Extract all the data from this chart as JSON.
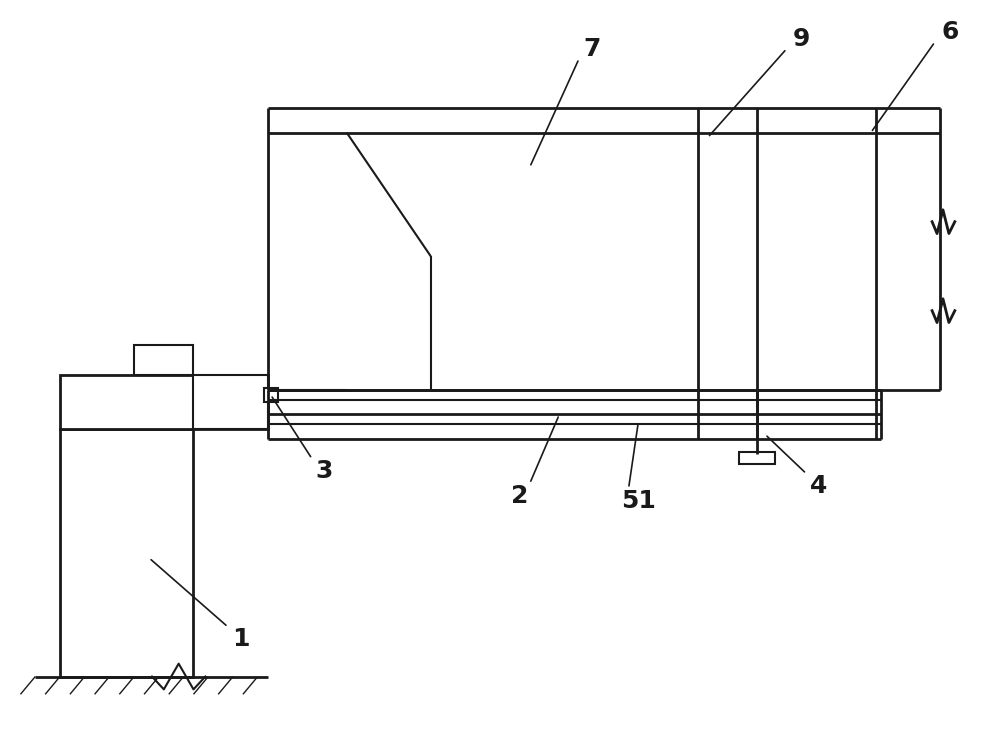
{
  "bg_color": "#ffffff",
  "line_color": "#1a1a1a",
  "lw": 1.5,
  "lw_thick": 2.0,
  "fig_width": 10.0,
  "fig_height": 7.41,
  "label_fontsize": 18
}
